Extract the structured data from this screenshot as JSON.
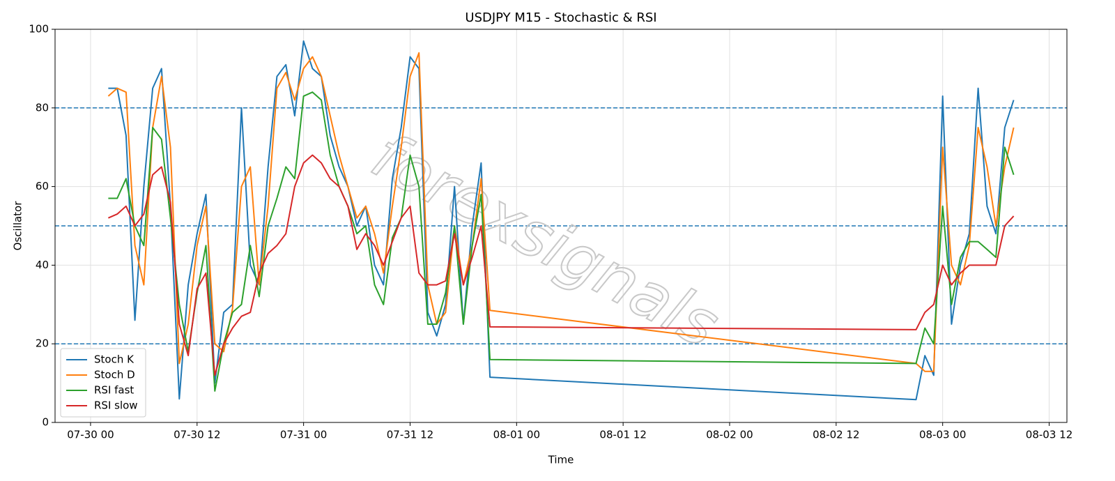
{
  "chart_data": {
    "type": "line",
    "title": "USDJPY M15 - Stochastic & RSI",
    "x_label": "Time",
    "y_label": "Oscillator",
    "watermark": "forexsignals",
    "x": [
      "07-30 02",
      "07-30 03",
      "07-30 04",
      "07-30 05",
      "07-30 06",
      "07-30 07",
      "07-30 08",
      "07-30 09",
      "07-30 10",
      "07-30 11",
      "07-30 12",
      "07-30 13",
      "07-30 14",
      "07-30 15",
      "07-30 16",
      "07-30 17",
      "07-30 18",
      "07-30 19",
      "07-30 20",
      "07-30 21",
      "07-30 22",
      "07-30 23",
      "07-31 00",
      "07-31 01",
      "07-31 02",
      "07-31 03",
      "07-31 04",
      "07-31 05",
      "07-31 06",
      "07-31 07",
      "07-31 08",
      "07-31 09",
      "07-31 10",
      "07-31 11",
      "07-31 12",
      "07-31 13",
      "07-31 14",
      "07-31 15",
      "07-31 16",
      "07-31 17",
      "07-31 18",
      "07-31 19",
      "07-31 20",
      "07-31 21",
      "08-02 21",
      "08-02 22",
      "08-02 23",
      "08-03 00",
      "08-03 01",
      "08-03 02",
      "08-03 03",
      "08-03 04",
      "08-03 05",
      "08-03 06",
      "08-03 07",
      "08-03 08"
    ],
    "series": [
      {
        "name": "Stoch K",
        "color": "#1f77b4",
        "values": [
          85,
          85,
          73,
          26,
          60,
          85,
          90,
          55,
          6,
          35,
          48,
          58,
          10,
          28,
          30,
          80,
          40,
          35,
          65,
          88,
          91,
          78,
          97,
          90,
          88,
          73,
          65,
          60,
          50,
          55,
          40,
          35,
          62,
          75,
          93,
          90,
          28,
          22,
          30,
          60,
          25,
          50,
          66,
          11.5,
          5.8,
          17,
          12,
          83,
          25,
          40,
          48,
          85,
          55,
          48,
          75,
          82
        ]
      },
      {
        "name": "Stoch D",
        "color": "#ff7f0e",
        "values": [
          83,
          85,
          84,
          45,
          35,
          75,
          88,
          70,
          15,
          25,
          45,
          55,
          20,
          18,
          29,
          60,
          65,
          35,
          55,
          85,
          89,
          82,
          90,
          93,
          88,
          78,
          68,
          60,
          52,
          55,
          48,
          38,
          55,
          70,
          88,
          94,
          35,
          25,
          28,
          50,
          35,
          45,
          62,
          28.5,
          15,
          13,
          13,
          70,
          40,
          35,
          45,
          75,
          65,
          50,
          65,
          75
        ]
      },
      {
        "name": "RSI fast",
        "color": "#2ca02c",
        "values": [
          57,
          57,
          62,
          50,
          45,
          75,
          72,
          52,
          30,
          18,
          33,
          45,
          8,
          20,
          28,
          30,
          45,
          32,
          50,
          57,
          65,
          62,
          83,
          84,
          82,
          68,
          60,
          55,
          48,
          50,
          35,
          30,
          47,
          52,
          68,
          60,
          25,
          25,
          33,
          50,
          25,
          45,
          58,
          16,
          15,
          24,
          20,
          55,
          30,
          42,
          46,
          46,
          44,
          42,
          70,
          63
        ]
      },
      {
        "name": "RSI slow",
        "color": "#d62728",
        "values": [
          52,
          53,
          55,
          50,
          53,
          63,
          65,
          56,
          25,
          17,
          34,
          38,
          12,
          20,
          24,
          27,
          28,
          38,
          43,
          45,
          48,
          60,
          66,
          68,
          66,
          62,
          60,
          55,
          44,
          48,
          45,
          40,
          46,
          52,
          55,
          38,
          35,
          35,
          36,
          48,
          35,
          42,
          50,
          24.3,
          23.6,
          28,
          30,
          40,
          35,
          38,
          40,
          40,
          40,
          40,
          50,
          52.5
        ]
      }
    ],
    "xlim": [
      "07-29 20",
      "08-03 14"
    ],
    "xticks": [
      "07-30 00",
      "07-30 12",
      "07-31 00",
      "07-31 12",
      "08-01 00",
      "08-01 12",
      "08-02 00",
      "08-02 12",
      "08-03 00",
      "08-03 12"
    ],
    "ylim": [
      0,
      100
    ],
    "yticks": [
      0,
      20,
      40,
      60,
      80,
      100
    ],
    "levels": [
      20,
      50,
      80
    ],
    "level_color": "#1f77b4",
    "grid": true,
    "legend": "lower left"
  }
}
